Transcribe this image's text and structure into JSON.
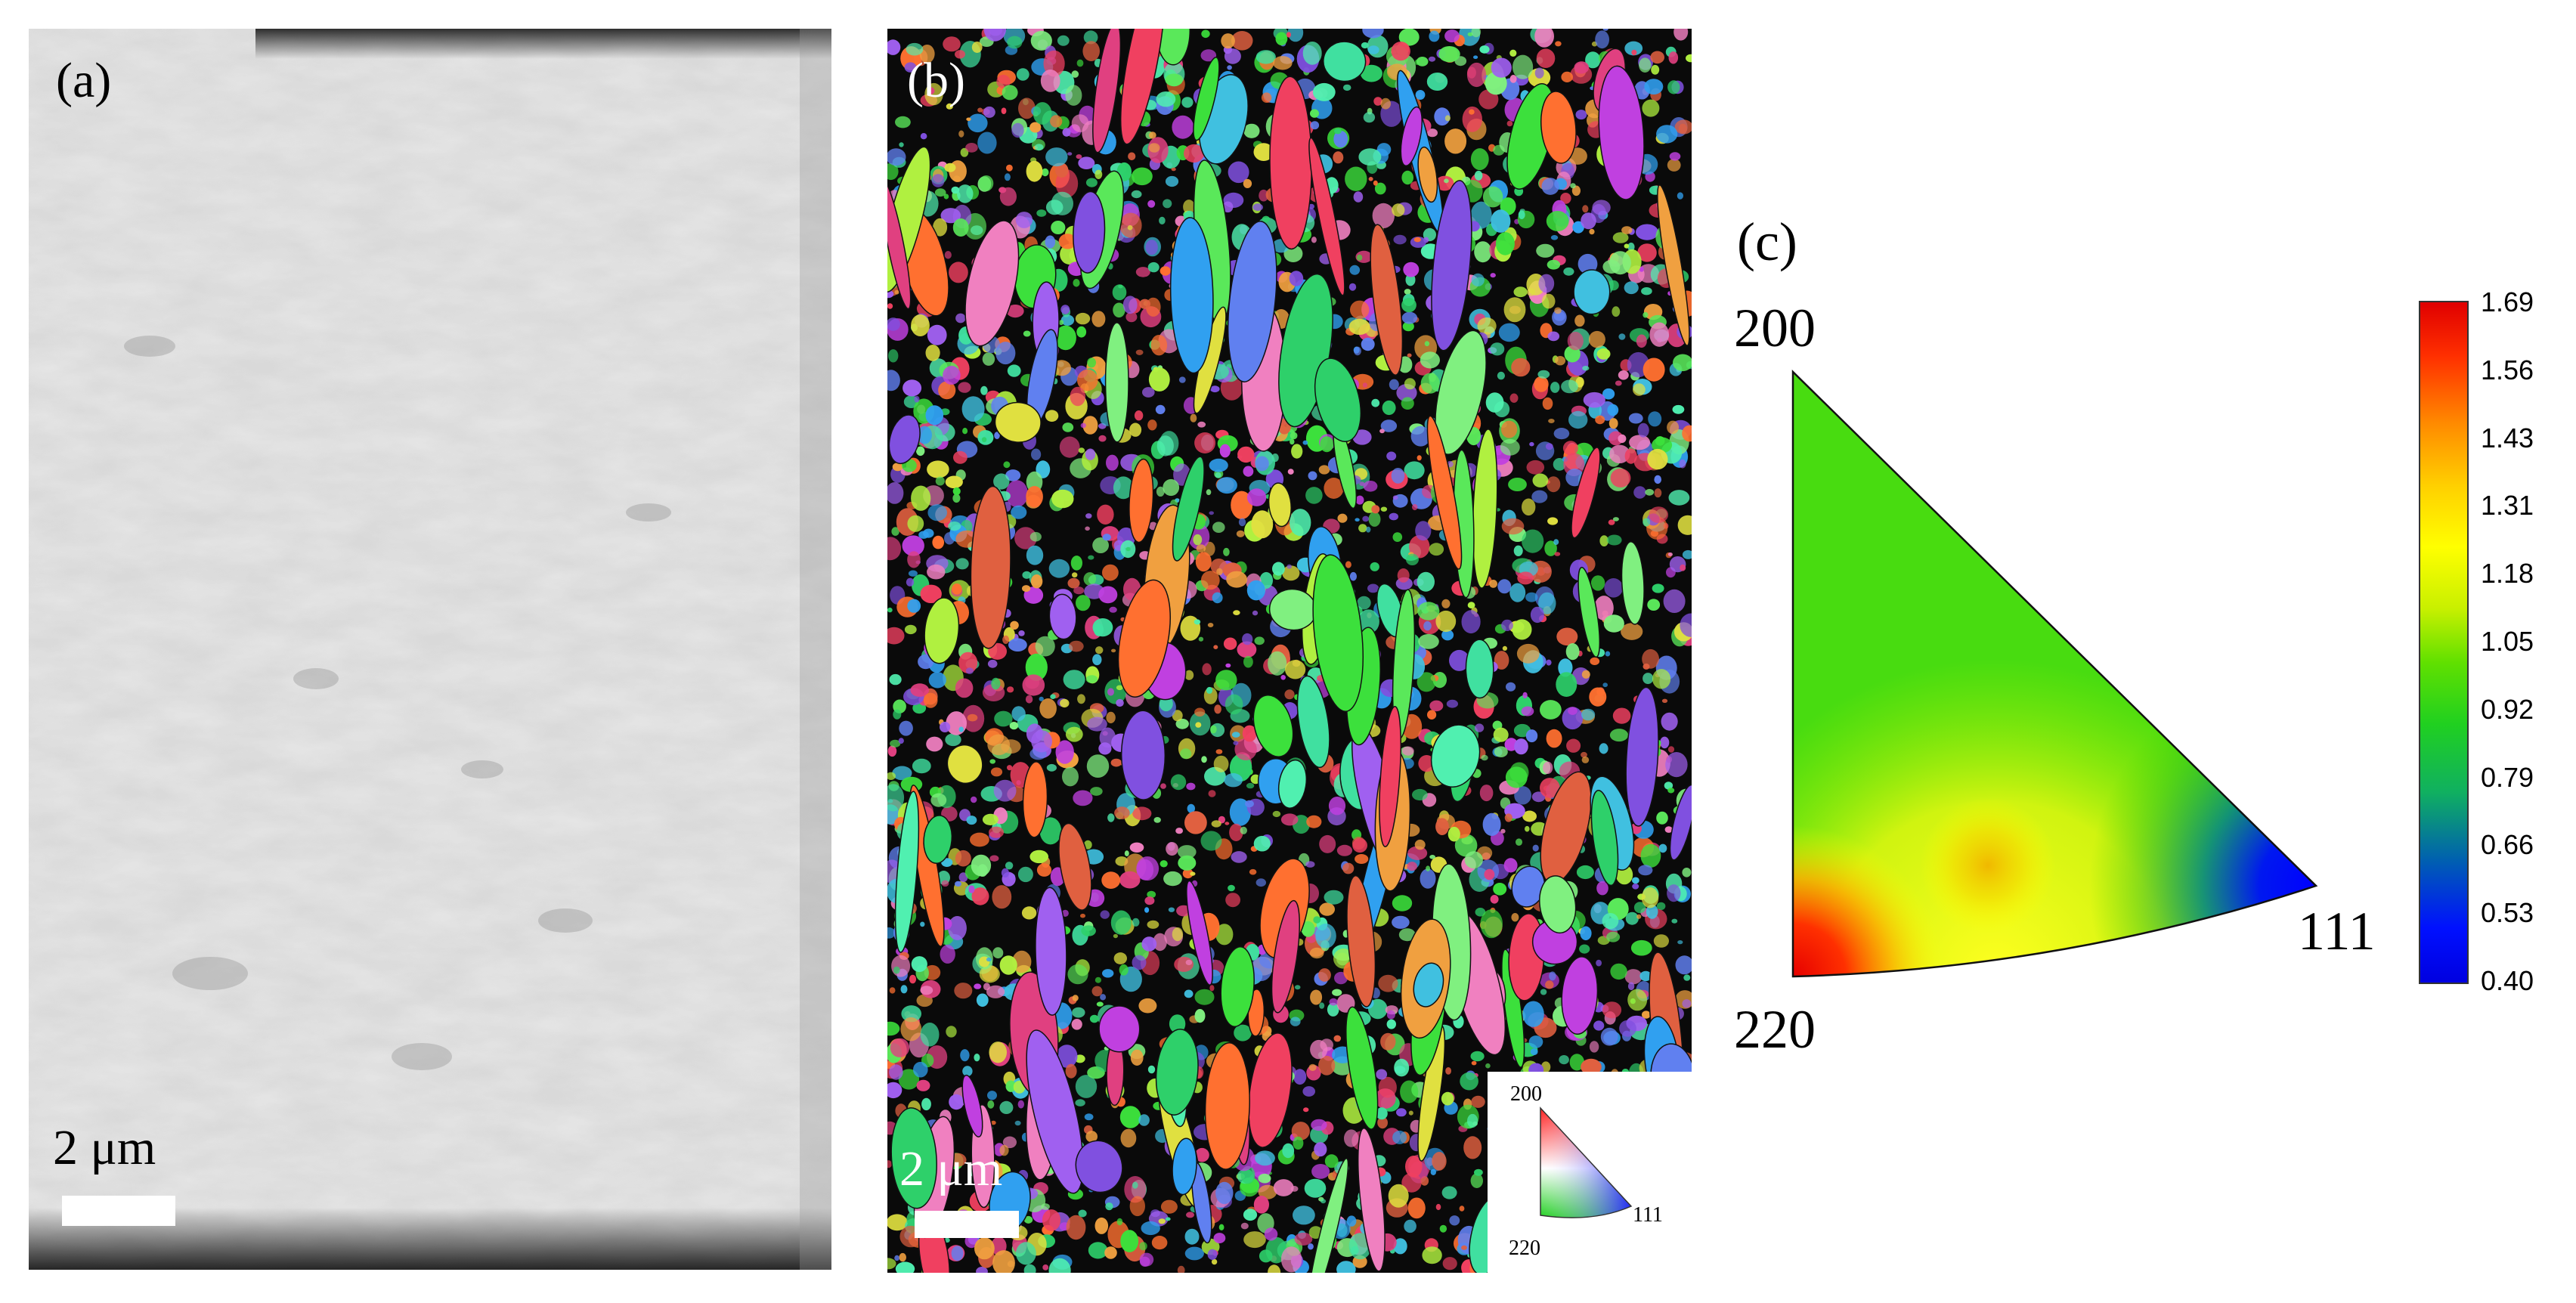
{
  "panel_a": {
    "label": "(a)",
    "scale_bar": "2 μm"
  },
  "panel_b": {
    "label": "(b)",
    "scale_bar": "2 μm",
    "ipf_key": {
      "top": "200",
      "left": "220",
      "right": "111"
    }
  },
  "panel_c": {
    "label": "(c)",
    "corners": {
      "top": "200",
      "bottom": "220",
      "right": "111"
    },
    "colorbar": {
      "max": 1.69,
      "min": 0.4,
      "ticks": [
        "1.69",
        "1.56",
        "1.43",
        "1.31",
        "1.18",
        "1.05",
        "0.92",
        "0.79",
        "0.66",
        "0.53",
        "0.40"
      ]
    }
  }
}
